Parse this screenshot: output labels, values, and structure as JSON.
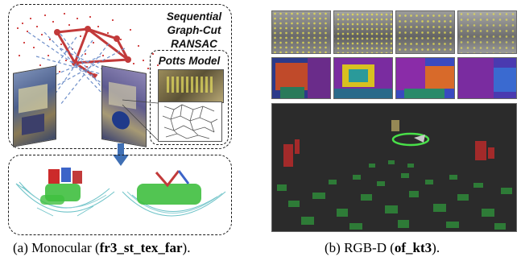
{
  "panel_a": {
    "method_line1": "Sequential",
    "method_line2": "Graph-Cut",
    "method_line3": "RANSAC",
    "potts_title": "Potts Model",
    "caption_prefix": "(a)  Monocular (",
    "caption_bold": "fr3_st_tex_far",
    "caption_suffix": ")."
  },
  "panel_b": {
    "caption_prefix": "(b)  RGB-D (",
    "caption_bold": "of_kt3",
    "caption_suffix": ")."
  },
  "colors": {
    "points_red": "#cc2b2b",
    "points_green": "#3fbf3f",
    "graph_edge": "#c23a3a",
    "arrow": "#3f6fb4",
    "dark_bg": "#2b2b2b"
  }
}
